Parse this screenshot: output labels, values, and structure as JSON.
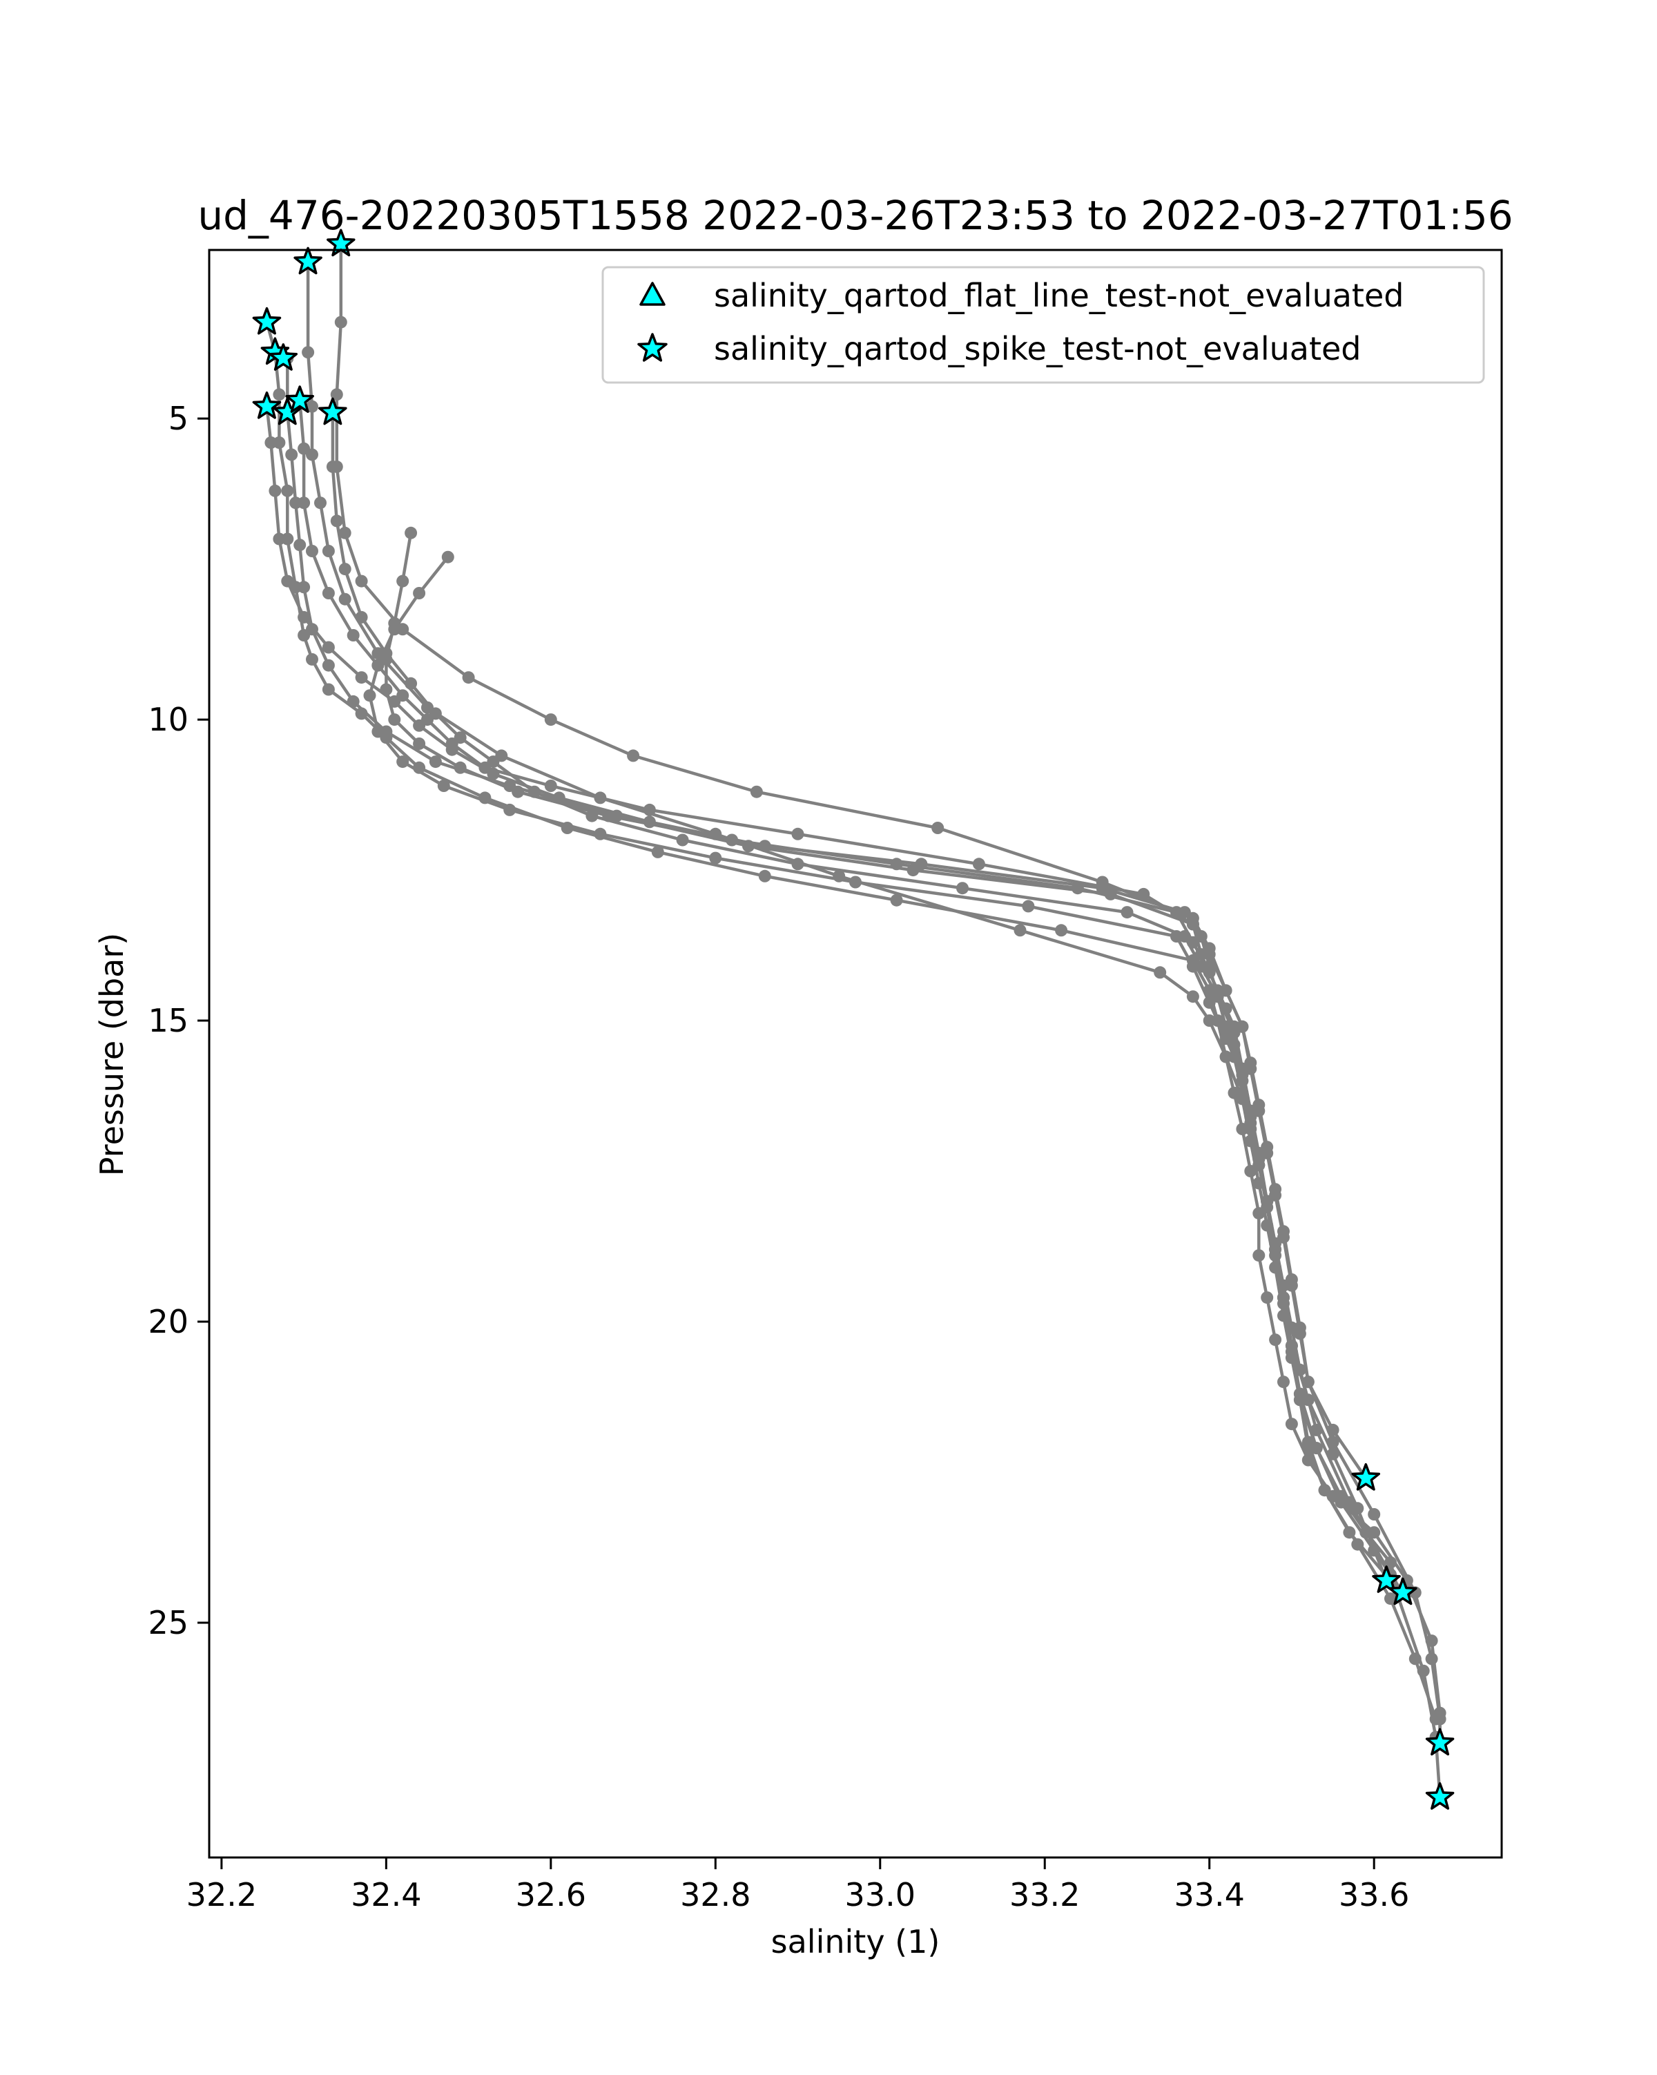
{
  "chart_data": {
    "type": "scatter",
    "title": "ud_476-20220305T1558 2022-03-26T23:53 to 2022-03-27T01:56",
    "xlabel": "salinity (1)",
    "ylabel": "Pressure (dbar)",
    "xlim": [
      32.185,
      33.755
    ],
    "ylim": [
      28.9,
      2.2
    ],
    "y_inverted": true,
    "x_ticks": [
      32.2,
      32.4,
      32.6,
      32.8,
      33.0,
      33.2,
      33.4,
      33.6
    ],
    "x_tick_labels": [
      "32.2",
      "32.4",
      "32.6",
      "32.8",
      "33.0",
      "33.2",
      "33.4",
      "33.6"
    ],
    "y_ticks": [
      5,
      10,
      15,
      20,
      25
    ],
    "y_tick_labels": [
      "5",
      "10",
      "15",
      "20",
      "25"
    ],
    "grid": false,
    "legend_position": "top-right",
    "colors": {
      "profile_line": "#808080",
      "flag_fill": "#00ffff",
      "flag_edge": "#000000"
    },
    "profiles": [
      {
        "x": [
          32.255,
          32.265,
          32.27,
          32.27,
          32.28,
          32.28,
          32.29,
          32.3,
          32.31,
          32.33,
          32.37,
          32.4,
          32.44,
          32.52,
          32.62,
          32.73,
          32.86,
          33.02,
          33.22,
          33.38,
          33.4,
          33.41,
          33.42,
          33.43,
          33.44,
          33.45,
          33.46,
          33.46,
          33.47,
          33.48,
          33.49,
          33.5,
          33.52,
          33.55,
          33.6,
          33.64,
          33.67,
          33.68,
          33.68
        ],
        "y": [
          3.4,
          3.9,
          4.6,
          5.4,
          6.2,
          7.0,
          7.8,
          8.6,
          9.0,
          9.5,
          9.9,
          10.3,
          10.8,
          11.3,
          11.8,
          12.2,
          12.6,
          13.0,
          13.5,
          14.0,
          14.5,
          15.0,
          15.6,
          16.2,
          16.8,
          17.5,
          18.2,
          18.9,
          19.6,
          20.3,
          21.0,
          21.7,
          22.3,
          22.9,
          23.5,
          24.3,
          25.3,
          26.5,
          27.0
        ]
      },
      {
        "x": [
          32.345,
          32.345,
          32.34,
          32.34,
          32.35,
          32.37,
          32.42,
          32.5,
          32.6,
          32.7,
          32.85,
          33.07,
          33.27,
          33.38,
          33.4,
          33.42,
          33.44,
          33.45,
          33.46,
          33.47,
          33.48,
          33.49,
          33.5,
          33.51,
          33.52,
          33.55,
          33.59
        ],
        "y": [
          2.1,
          3.4,
          4.6,
          5.8,
          6.9,
          7.7,
          8.5,
          9.3,
          10.0,
          10.6,
          11.2,
          11.8,
          12.7,
          13.3,
          13.8,
          14.5,
          15.1,
          15.8,
          16.5,
          17.2,
          17.9,
          18.6,
          19.4,
          20.2,
          21.0,
          21.8,
          22.6
        ]
      },
      {
        "x": [
          32.305,
          32.305,
          32.31,
          32.31,
          32.32,
          32.33,
          32.35,
          32.39,
          32.45,
          32.54,
          32.66,
          32.8,
          32.95,
          33.17,
          33.34,
          33.38,
          33.4,
          33.42,
          33.44,
          33.45,
          33.46,
          33.47,
          33.48,
          33.49,
          33.5,
          33.51,
          33.53,
          33.56,
          33.59,
          33.62,
          33.63
        ],
        "y": [
          2.4,
          3.9,
          4.8,
          5.6,
          6.4,
          7.2,
          8.0,
          8.9,
          9.8,
          10.6,
          11.3,
          11.9,
          12.6,
          13.5,
          14.2,
          14.6,
          15.0,
          15.6,
          16.3,
          17.0,
          17.7,
          18.4,
          19.1,
          19.9,
          20.6,
          21.3,
          22.1,
          22.9,
          23.5,
          24.0,
          24.5
        ]
      },
      {
        "x": [
          32.28,
          32.28,
          32.285,
          32.29,
          32.295,
          32.3,
          32.31,
          32.33,
          32.36,
          32.4,
          32.46,
          32.55,
          32.68,
          32.84,
          33.04,
          33.28,
          33.38,
          33.39,
          33.41,
          33.43,
          33.44,
          33.45,
          33.46,
          33.47,
          33.48,
          33.49,
          33.5,
          33.52,
          33.55,
          33.58,
          33.615
        ],
        "y": [
          4.0,
          4.9,
          5.6,
          6.4,
          7.1,
          7.8,
          8.5,
          9.1,
          9.7,
          10.2,
          10.7,
          11.1,
          11.6,
          12.1,
          12.5,
          12.9,
          13.4,
          13.9,
          14.5,
          15.1,
          15.8,
          16.5,
          17.3,
          18.0,
          18.8,
          19.6,
          20.4,
          21.3,
          22.2,
          23.1,
          24.3
        ]
      },
      {
        "x": [
          32.255,
          32.26,
          32.265,
          32.27,
          32.28,
          32.3,
          32.33,
          32.37,
          32.41,
          32.44,
          32.48,
          32.53,
          32.61,
          32.72,
          32.86,
          33.05,
          33.27,
          33.37,
          33.39,
          33.4,
          33.41,
          33.42,
          33.43,
          33.44,
          33.45,
          33.46,
          33.47,
          33.48,
          33.49,
          33.5,
          33.51,
          33.53,
          33.57,
          33.62,
          33.66,
          33.675,
          33.68
        ],
        "y": [
          4.8,
          5.4,
          6.2,
          7.0,
          7.7,
          8.3,
          8.8,
          9.3,
          9.7,
          10.1,
          10.5,
          10.9,
          11.3,
          11.7,
          12.1,
          12.4,
          12.8,
          13.2,
          13.6,
          14.1,
          14.6,
          15.1,
          15.6,
          16.2,
          16.8,
          17.4,
          18.0,
          18.7,
          19.4,
          20.1,
          20.8,
          21.8,
          23.0,
          24.2,
          25.8,
          26.9,
          27.9
        ]
      },
      {
        "x": [
          32.335,
          32.335,
          32.34,
          32.35,
          32.37,
          32.4,
          32.43,
          32.46,
          32.49,
          32.53,
          32.58,
          32.65,
          32.76,
          32.9,
          33.1,
          33.3,
          33.37,
          33.39,
          33.41,
          33.43,
          33.44,
          33.45,
          33.46,
          33.47,
          33.48,
          33.49,
          33.5,
          33.51,
          33.53,
          33.56,
          33.6,
          33.635
        ],
        "y": [
          4.9,
          5.8,
          6.7,
          7.5,
          8.3,
          8.9,
          9.4,
          9.9,
          10.3,
          10.7,
          11.2,
          11.6,
          12.0,
          12.4,
          12.8,
          13.2,
          13.6,
          14.1,
          14.6,
          15.2,
          15.8,
          16.5,
          17.2,
          18.0,
          18.8,
          19.6,
          20.4,
          21.2,
          22.1,
          23.0,
          23.8,
          24.5
        ]
      },
      {
        "x": [
          32.295,
          32.3,
          32.3,
          32.31,
          32.33,
          32.36,
          32.39,
          32.42,
          32.45,
          32.48,
          32.52,
          32.6,
          32.72,
          32.9,
          33.12,
          33.32,
          33.38,
          33.4,
          33.42,
          33.44,
          33.45,
          33.46,
          33.47,
          33.48,
          33.49,
          33.5,
          33.51,
          33.52,
          33.55,
          33.6,
          33.65,
          33.67,
          33.68,
          33.68
        ],
        "y": [
          4.7,
          5.5,
          6.4,
          7.2,
          7.9,
          8.6,
          9.1,
          9.6,
          10.0,
          10.4,
          10.8,
          11.1,
          11.5,
          11.9,
          12.4,
          12.9,
          13.4,
          13.9,
          14.5,
          15.1,
          15.7,
          16.4,
          17.1,
          17.8,
          18.5,
          19.3,
          20.1,
          21.0,
          22.0,
          23.2,
          24.5,
          25.6,
          26.6,
          27.0
        ]
      },
      {
        "x": [
          32.43,
          32.42,
          32.41,
          32.4,
          32.4,
          32.41,
          32.44,
          32.49,
          32.56,
          32.67,
          32.82,
          33.02,
          33.24,
          33.36,
          33.38,
          33.4,
          33.42,
          33.43,
          33.44,
          33.45,
          33.46,
          33.47,
          33.48,
          33.49,
          33.5,
          33.51,
          33.52,
          33.54,
          33.57,
          33.62
        ],
        "y": [
          6.9,
          7.7,
          8.4,
          9.0,
          9.5,
          10.0,
          10.4,
          10.8,
          11.2,
          11.6,
          12.0,
          12.4,
          12.8,
          13.2,
          13.7,
          14.2,
          14.8,
          15.4,
          16.0,
          16.7,
          17.4,
          18.1,
          18.9,
          19.7,
          20.5,
          21.3,
          22.1,
          22.8,
          23.5,
          24.3
        ]
      },
      {
        "x": [
          32.475,
          32.44,
          32.41,
          32.39,
          32.38,
          32.39,
          32.42,
          32.47,
          32.55,
          32.66,
          32.8,
          32.97,
          33.18,
          33.36,
          33.38,
          33.4,
          33.42,
          33.44,
          33.45,
          33.46,
          33.47,
          33.48,
          33.49,
          33.5,
          33.51,
          33.52,
          33.54,
          33.58,
          33.62,
          33.65,
          33.675
        ],
        "y": [
          7.3,
          7.9,
          8.5,
          9.1,
          9.6,
          10.2,
          10.7,
          11.1,
          11.5,
          11.9,
          12.3,
          12.7,
          13.1,
          13.6,
          14.1,
          14.7,
          15.3,
          15.9,
          16.6,
          17.3,
          18.0,
          18.8,
          19.6,
          20.4,
          21.2,
          22.0,
          22.8,
          23.7,
          24.6,
          25.6,
          26.6
        ]
      }
    ],
    "legend": [
      {
        "label": "salinity_qartod_flat_line_test-not_evaluated",
        "marker": "triangle"
      },
      {
        "label": "salinity_qartod_spike_test-not_evaluated",
        "marker": "star"
      }
    ],
    "flags": {
      "flat_line": [],
      "spike": [
        {
          "x": 32.345,
          "y": 2.1
        },
        {
          "x": 32.305,
          "y": 2.4
        },
        {
          "x": 32.255,
          "y": 3.4
        },
        {
          "x": 32.265,
          "y": 3.9
        },
        {
          "x": 32.275,
          "y": 4.0
        },
        {
          "x": 32.255,
          "y": 4.8
        },
        {
          "x": 32.28,
          "y": 4.9
        },
        {
          "x": 32.295,
          "y": 4.7
        },
        {
          "x": 32.335,
          "y": 4.9
        },
        {
          "x": 33.59,
          "y": 22.6
        },
        {
          "x": 33.615,
          "y": 24.3
        },
        {
          "x": 33.635,
          "y": 24.5
        },
        {
          "x": 33.68,
          "y": 27.0
        },
        {
          "x": 33.68,
          "y": 27.9
        }
      ]
    }
  }
}
